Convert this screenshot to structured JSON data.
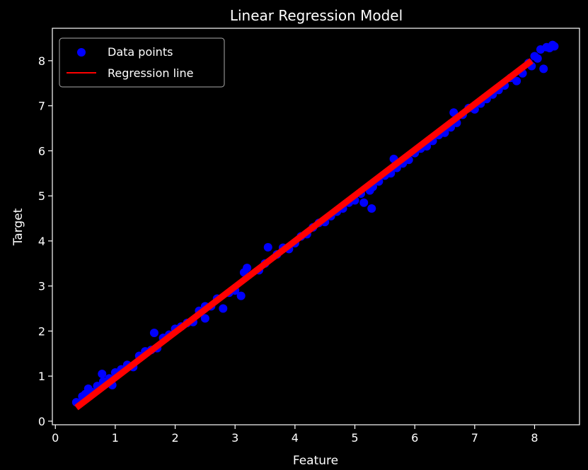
{
  "colors": {
    "background": "#000000",
    "axes": "#ffffff",
    "points": "#0000ff",
    "line": "#ff0000",
    "legend_edge": "#aaaaaa"
  },
  "chart_data": {
    "type": "scatter",
    "title": "Linear Regression Model",
    "xlabel": "Feature",
    "ylabel": "Target",
    "xlim": [
      -0.05,
      8.75
    ],
    "ylim": [
      -0.08,
      8.72
    ],
    "xticks": [
      "0",
      "1",
      "2",
      "3",
      "4",
      "5",
      "6",
      "7",
      "8"
    ],
    "yticks": [
      "0",
      "1",
      "2",
      "3",
      "4",
      "5",
      "6",
      "7",
      "8"
    ],
    "grid": false,
    "legend": {
      "placement": "top-left",
      "entries": [
        "Data points",
        "Regression line"
      ]
    },
    "series": [
      {
        "name": "Data points",
        "kind": "scatter",
        "color": "#0000ff",
        "points": [
          [
            0.35,
            0.42
          ],
          [
            0.4,
            0.38
          ],
          [
            0.45,
            0.55
          ],
          [
            0.5,
            0.6
          ],
          [
            0.55,
            0.72
          ],
          [
            0.6,
            0.65
          ],
          [
            0.7,
            0.78
          ],
          [
            0.78,
            1.05
          ],
          [
            0.8,
            0.88
          ],
          [
            0.9,
            0.95
          ],
          [
            0.95,
            0.8
          ],
          [
            1.0,
            1.08
          ],
          [
            1.1,
            1.15
          ],
          [
            1.2,
            1.25
          ],
          [
            1.3,
            1.2
          ],
          [
            1.4,
            1.45
          ],
          [
            1.5,
            1.55
          ],
          [
            1.6,
            1.58
          ],
          [
            1.65,
            1.96
          ],
          [
            1.7,
            1.62
          ],
          [
            1.8,
            1.85
          ],
          [
            1.9,
            1.92
          ],
          [
            2.0,
            2.05
          ],
          [
            2.1,
            2.1
          ],
          [
            2.2,
            2.18
          ],
          [
            2.3,
            2.2
          ],
          [
            2.4,
            2.45
          ],
          [
            2.5,
            2.55
          ],
          [
            2.5,
            2.28
          ],
          [
            2.6,
            2.55
          ],
          [
            2.7,
            2.72
          ],
          [
            2.8,
            2.5
          ],
          [
            2.9,
            2.85
          ],
          [
            3.0,
            2.9
          ],
          [
            3.1,
            2.78
          ],
          [
            3.15,
            3.3
          ],
          [
            3.2,
            3.4
          ],
          [
            3.4,
            3.35
          ],
          [
            3.5,
            3.5
          ],
          [
            3.55,
            3.86
          ],
          [
            3.7,
            3.7
          ],
          [
            3.8,
            3.85
          ],
          [
            3.9,
            3.82
          ],
          [
            4.0,
            3.95
          ],
          [
            4.1,
            4.1
          ],
          [
            4.2,
            4.15
          ],
          [
            4.3,
            4.3
          ],
          [
            4.4,
            4.4
          ],
          [
            4.5,
            4.42
          ],
          [
            4.6,
            4.55
          ],
          [
            4.7,
            4.65
          ],
          [
            4.8,
            4.72
          ],
          [
            4.9,
            4.85
          ],
          [
            5.0,
            4.9
          ],
          [
            5.1,
            5.05
          ],
          [
            5.15,
            4.85
          ],
          [
            5.25,
            5.12
          ],
          [
            5.28,
            4.72
          ],
          [
            5.3,
            5.2
          ],
          [
            5.4,
            5.32
          ],
          [
            5.5,
            5.45
          ],
          [
            5.6,
            5.5
          ],
          [
            5.65,
            5.82
          ],
          [
            5.7,
            5.62
          ],
          [
            5.8,
            5.72
          ],
          [
            5.9,
            5.8
          ],
          [
            6.0,
            5.95
          ],
          [
            6.1,
            6.05
          ],
          [
            6.2,
            6.1
          ],
          [
            6.3,
            6.22
          ],
          [
            6.4,
            6.35
          ],
          [
            6.5,
            6.4
          ],
          [
            6.55,
            6.55
          ],
          [
            6.6,
            6.52
          ],
          [
            6.65,
            6.85
          ],
          [
            6.7,
            6.62
          ],
          [
            6.8,
            6.8
          ],
          [
            6.9,
            6.95
          ],
          [
            7.0,
            6.92
          ],
          [
            7.1,
            7.05
          ],
          [
            7.2,
            7.15
          ],
          [
            7.3,
            7.25
          ],
          [
            7.4,
            7.35
          ],
          [
            7.5,
            7.45
          ],
          [
            7.6,
            7.62
          ],
          [
            7.7,
            7.55
          ],
          [
            7.8,
            7.72
          ],
          [
            7.9,
            7.95
          ],
          [
            7.95,
            7.88
          ],
          [
            8.0,
            8.1
          ],
          [
            8.05,
            8.05
          ],
          [
            8.1,
            8.25
          ],
          [
            8.15,
            7.82
          ],
          [
            8.2,
            8.3
          ],
          [
            8.25,
            8.28
          ],
          [
            8.3,
            8.35
          ],
          [
            8.33,
            8.32
          ]
        ]
      },
      {
        "name": "Regression line",
        "kind": "line",
        "color": "#ff0000",
        "points": [
          [
            0.35,
            0.3
          ],
          [
            7.95,
            8.0
          ]
        ]
      }
    ]
  }
}
